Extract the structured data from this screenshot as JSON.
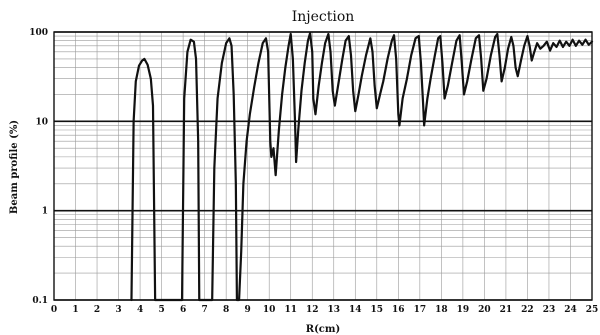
{
  "chart_data": {
    "type": "line",
    "title": "Injection",
    "xlabel": "R(cm)",
    "ylabel": "Beam profile (%)",
    "xlim": [
      0,
      25
    ],
    "ylim": [
      0.1,
      100
    ],
    "y_scale": "log",
    "grid": true,
    "x_ticks": [
      "0",
      "1",
      "2",
      "3",
      "4",
      "5",
      "6",
      "7",
      "8",
      "9",
      "10",
      "11",
      "12",
      "13",
      "14",
      "15",
      "16",
      "17",
      "18",
      "19",
      "20",
      "21",
      "22",
      "23",
      "24",
      "25"
    ],
    "y_ticks": [
      {
        "value": 0.1,
        "label": "0.1"
      },
      {
        "value": 1,
        "label": "1"
      },
      {
        "value": 10,
        "label": "10"
      },
      {
        "value": 100,
        "label": "100"
      }
    ],
    "series": [
      {
        "color": "#111111",
        "points": [
          [
            3.6,
            0.1
          ],
          [
            3.7,
            10
          ],
          [
            3.8,
            28
          ],
          [
            3.95,
            42
          ],
          [
            4.1,
            48
          ],
          [
            4.2,
            50
          ],
          [
            4.35,
            43
          ],
          [
            4.5,
            30
          ],
          [
            4.6,
            15
          ],
          [
            4.7,
            0.1
          ],
          [
            5.95,
            0.1
          ],
          [
            6.05,
            18
          ],
          [
            6.2,
            60
          ],
          [
            6.35,
            82
          ],
          [
            6.5,
            78
          ],
          [
            6.6,
            50
          ],
          [
            6.7,
            6
          ],
          [
            6.75,
            0.1
          ],
          [
            7.35,
            0.1
          ],
          [
            7.45,
            3
          ],
          [
            7.6,
            18
          ],
          [
            7.8,
            45
          ],
          [
            8.0,
            75
          ],
          [
            8.15,
            85
          ],
          [
            8.25,
            70
          ],
          [
            8.35,
            20
          ],
          [
            8.45,
            2
          ],
          [
            8.5,
            0.1
          ],
          [
            8.6,
            0.1
          ],
          [
            8.7,
            0.35
          ],
          [
            8.8,
            2
          ],
          [
            8.95,
            6
          ],
          [
            9.1,
            12
          ],
          [
            9.3,
            24
          ],
          [
            9.5,
            45
          ],
          [
            9.7,
            75
          ],
          [
            9.85,
            85
          ],
          [
            9.95,
            60
          ],
          [
            10.05,
            6
          ],
          [
            10.1,
            4
          ],
          [
            10.2,
            5
          ],
          [
            10.3,
            2.5
          ],
          [
            10.45,
            8
          ],
          [
            10.6,
            20
          ],
          [
            10.75,
            40
          ],
          [
            10.9,
            70
          ],
          [
            11.0,
            95
          ],
          [
            11.1,
            50
          ],
          [
            11.2,
            10
          ],
          [
            11.25,
            3.5
          ],
          [
            11.35,
            8
          ],
          [
            11.5,
            22
          ],
          [
            11.65,
            45
          ],
          [
            11.8,
            80
          ],
          [
            11.9,
            97
          ],
          [
            12.0,
            60
          ],
          [
            12.05,
            18
          ],
          [
            12.15,
            12
          ],
          [
            12.3,
            25
          ],
          [
            12.45,
            45
          ],
          [
            12.6,
            75
          ],
          [
            12.75,
            95
          ],
          [
            12.85,
            60
          ],
          [
            12.95,
            22
          ],
          [
            13.05,
            15
          ],
          [
            13.2,
            25
          ],
          [
            13.4,
            50
          ],
          [
            13.55,
            80
          ],
          [
            13.7,
            90
          ],
          [
            13.8,
            55
          ],
          [
            13.9,
            22
          ],
          [
            14.0,
            13
          ],
          [
            14.15,
            20
          ],
          [
            14.3,
            32
          ],
          [
            14.5,
            55
          ],
          [
            14.7,
            85
          ],
          [
            14.8,
            60
          ],
          [
            14.9,
            25
          ],
          [
            15.0,
            14
          ],
          [
            15.15,
            20
          ],
          [
            15.3,
            28
          ],
          [
            15.5,
            50
          ],
          [
            15.7,
            80
          ],
          [
            15.8,
            92
          ],
          [
            15.9,
            50
          ],
          [
            16.0,
            12
          ],
          [
            16.05,
            9
          ],
          [
            16.2,
            18
          ],
          [
            16.4,
            30
          ],
          [
            16.6,
            55
          ],
          [
            16.8,
            85
          ],
          [
            16.95,
            90
          ],
          [
            17.05,
            45
          ],
          [
            17.15,
            16
          ],
          [
            17.2,
            9
          ],
          [
            17.35,
            18
          ],
          [
            17.5,
            30
          ],
          [
            17.7,
            55
          ],
          [
            17.85,
            85
          ],
          [
            17.95,
            90
          ],
          [
            18.05,
            45
          ],
          [
            18.15,
            18
          ],
          [
            18.3,
            25
          ],
          [
            18.5,
            45
          ],
          [
            18.7,
            80
          ],
          [
            18.85,
            92
          ],
          [
            18.95,
            45
          ],
          [
            19.05,
            20
          ],
          [
            19.2,
            28
          ],
          [
            19.4,
            50
          ],
          [
            19.6,
            85
          ],
          [
            19.75,
            92
          ],
          [
            19.85,
            50
          ],
          [
            19.95,
            22
          ],
          [
            20.1,
            30
          ],
          [
            20.3,
            55
          ],
          [
            20.5,
            88
          ],
          [
            20.6,
            95
          ],
          [
            20.7,
            55
          ],
          [
            20.8,
            28
          ],
          [
            20.95,
            40
          ],
          [
            21.1,
            65
          ],
          [
            21.25,
            88
          ],
          [
            21.35,
            70
          ],
          [
            21.45,
            40
          ],
          [
            21.55,
            32
          ],
          [
            21.7,
            48
          ],
          [
            21.85,
            70
          ],
          [
            22.0,
            90
          ],
          [
            22.1,
            70
          ],
          [
            22.2,
            48
          ],
          [
            22.3,
            58
          ],
          [
            22.45,
            75
          ],
          [
            22.6,
            65
          ],
          [
            22.75,
            70
          ],
          [
            22.9,
            78
          ],
          [
            23.05,
            62
          ],
          [
            23.2,
            75
          ],
          [
            23.35,
            68
          ],
          [
            23.5,
            80
          ],
          [
            23.65,
            68
          ],
          [
            23.8,
            78
          ],
          [
            23.95,
            70
          ],
          [
            24.1,
            82
          ],
          [
            24.25,
            70
          ],
          [
            24.4,
            80
          ],
          [
            24.55,
            72
          ],
          [
            24.7,
            82
          ],
          [
            24.85,
            72
          ],
          [
            25.0,
            78
          ]
        ]
      }
    ]
  }
}
